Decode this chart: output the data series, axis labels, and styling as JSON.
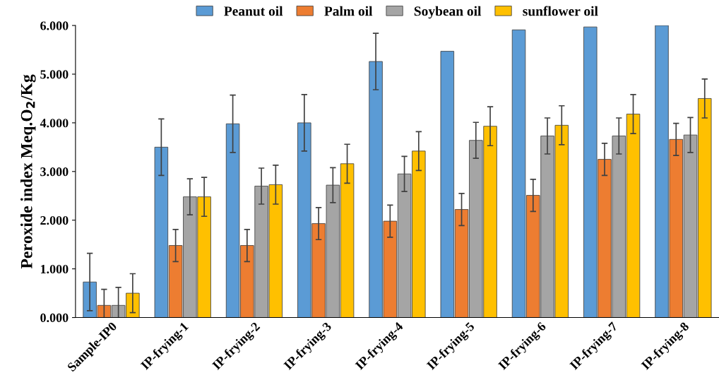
{
  "chart_data": {
    "type": "bar",
    "ylabel": "Peroxide index Meq.O$_{2}$/Kg",
    "categories": [
      "Sample-IP0",
      "IP-frying-1",
      "IP-frying-2",
      "IP-frying-3",
      "IP-frying-4",
      "IP-frying-5",
      "IP-frying-6",
      "IP-frying-7",
      "IP-frying-8"
    ],
    "series": [
      {
        "name": "Peanut oil",
        "color": "#5b9bd5",
        "values": [
          0.73,
          3.5,
          3.98,
          4.0,
          5.26,
          5.47,
          5.91,
          5.97,
          6.0
        ],
        "errors": [
          0.59,
          0.58,
          0.59,
          0.58,
          0.58,
          null,
          null,
          null,
          null
        ]
      },
      {
        "name": "Palm oil",
        "color": "#ed7d31",
        "values": [
          0.25,
          1.48,
          1.48,
          1.93,
          1.98,
          2.22,
          2.51,
          3.25,
          3.66
        ],
        "errors": [
          0.33,
          0.33,
          0.33,
          0.33,
          0.33,
          0.33,
          0.33,
          0.33,
          0.33
        ]
      },
      {
        "name": "Soybean oil",
        "color": "#a5a5a5",
        "values": [
          0.25,
          2.48,
          2.7,
          2.72,
          2.95,
          3.64,
          3.73,
          3.73,
          3.75
        ],
        "errors": [
          0.37,
          0.37,
          0.37,
          0.36,
          0.36,
          0.37,
          0.37,
          0.37,
          0.36
        ]
      },
      {
        "name": "sunflower oil",
        "color": "#ffc000",
        "values": [
          0.5,
          2.48,
          2.73,
          3.16,
          3.42,
          3.93,
          3.95,
          4.18,
          4.5
        ],
        "errors": [
          0.4,
          0.4,
          0.4,
          0.4,
          0.4,
          0.4,
          0.4,
          0.4,
          0.4
        ]
      }
    ],
    "ylim": [
      0,
      6
    ],
    "yticks": [
      {
        "value": 0,
        "label": "0.000"
      },
      {
        "value": 1,
        "label": "1.000"
      },
      {
        "value": 2,
        "label": "2.000"
      },
      {
        "value": 3,
        "label": "3.000"
      },
      {
        "value": 4,
        "label": "4.000"
      },
      {
        "value": 5,
        "label": "5.000"
      },
      {
        "value": 6,
        "label": "6.000"
      }
    ],
    "legend": "top",
    "grid": false
  }
}
